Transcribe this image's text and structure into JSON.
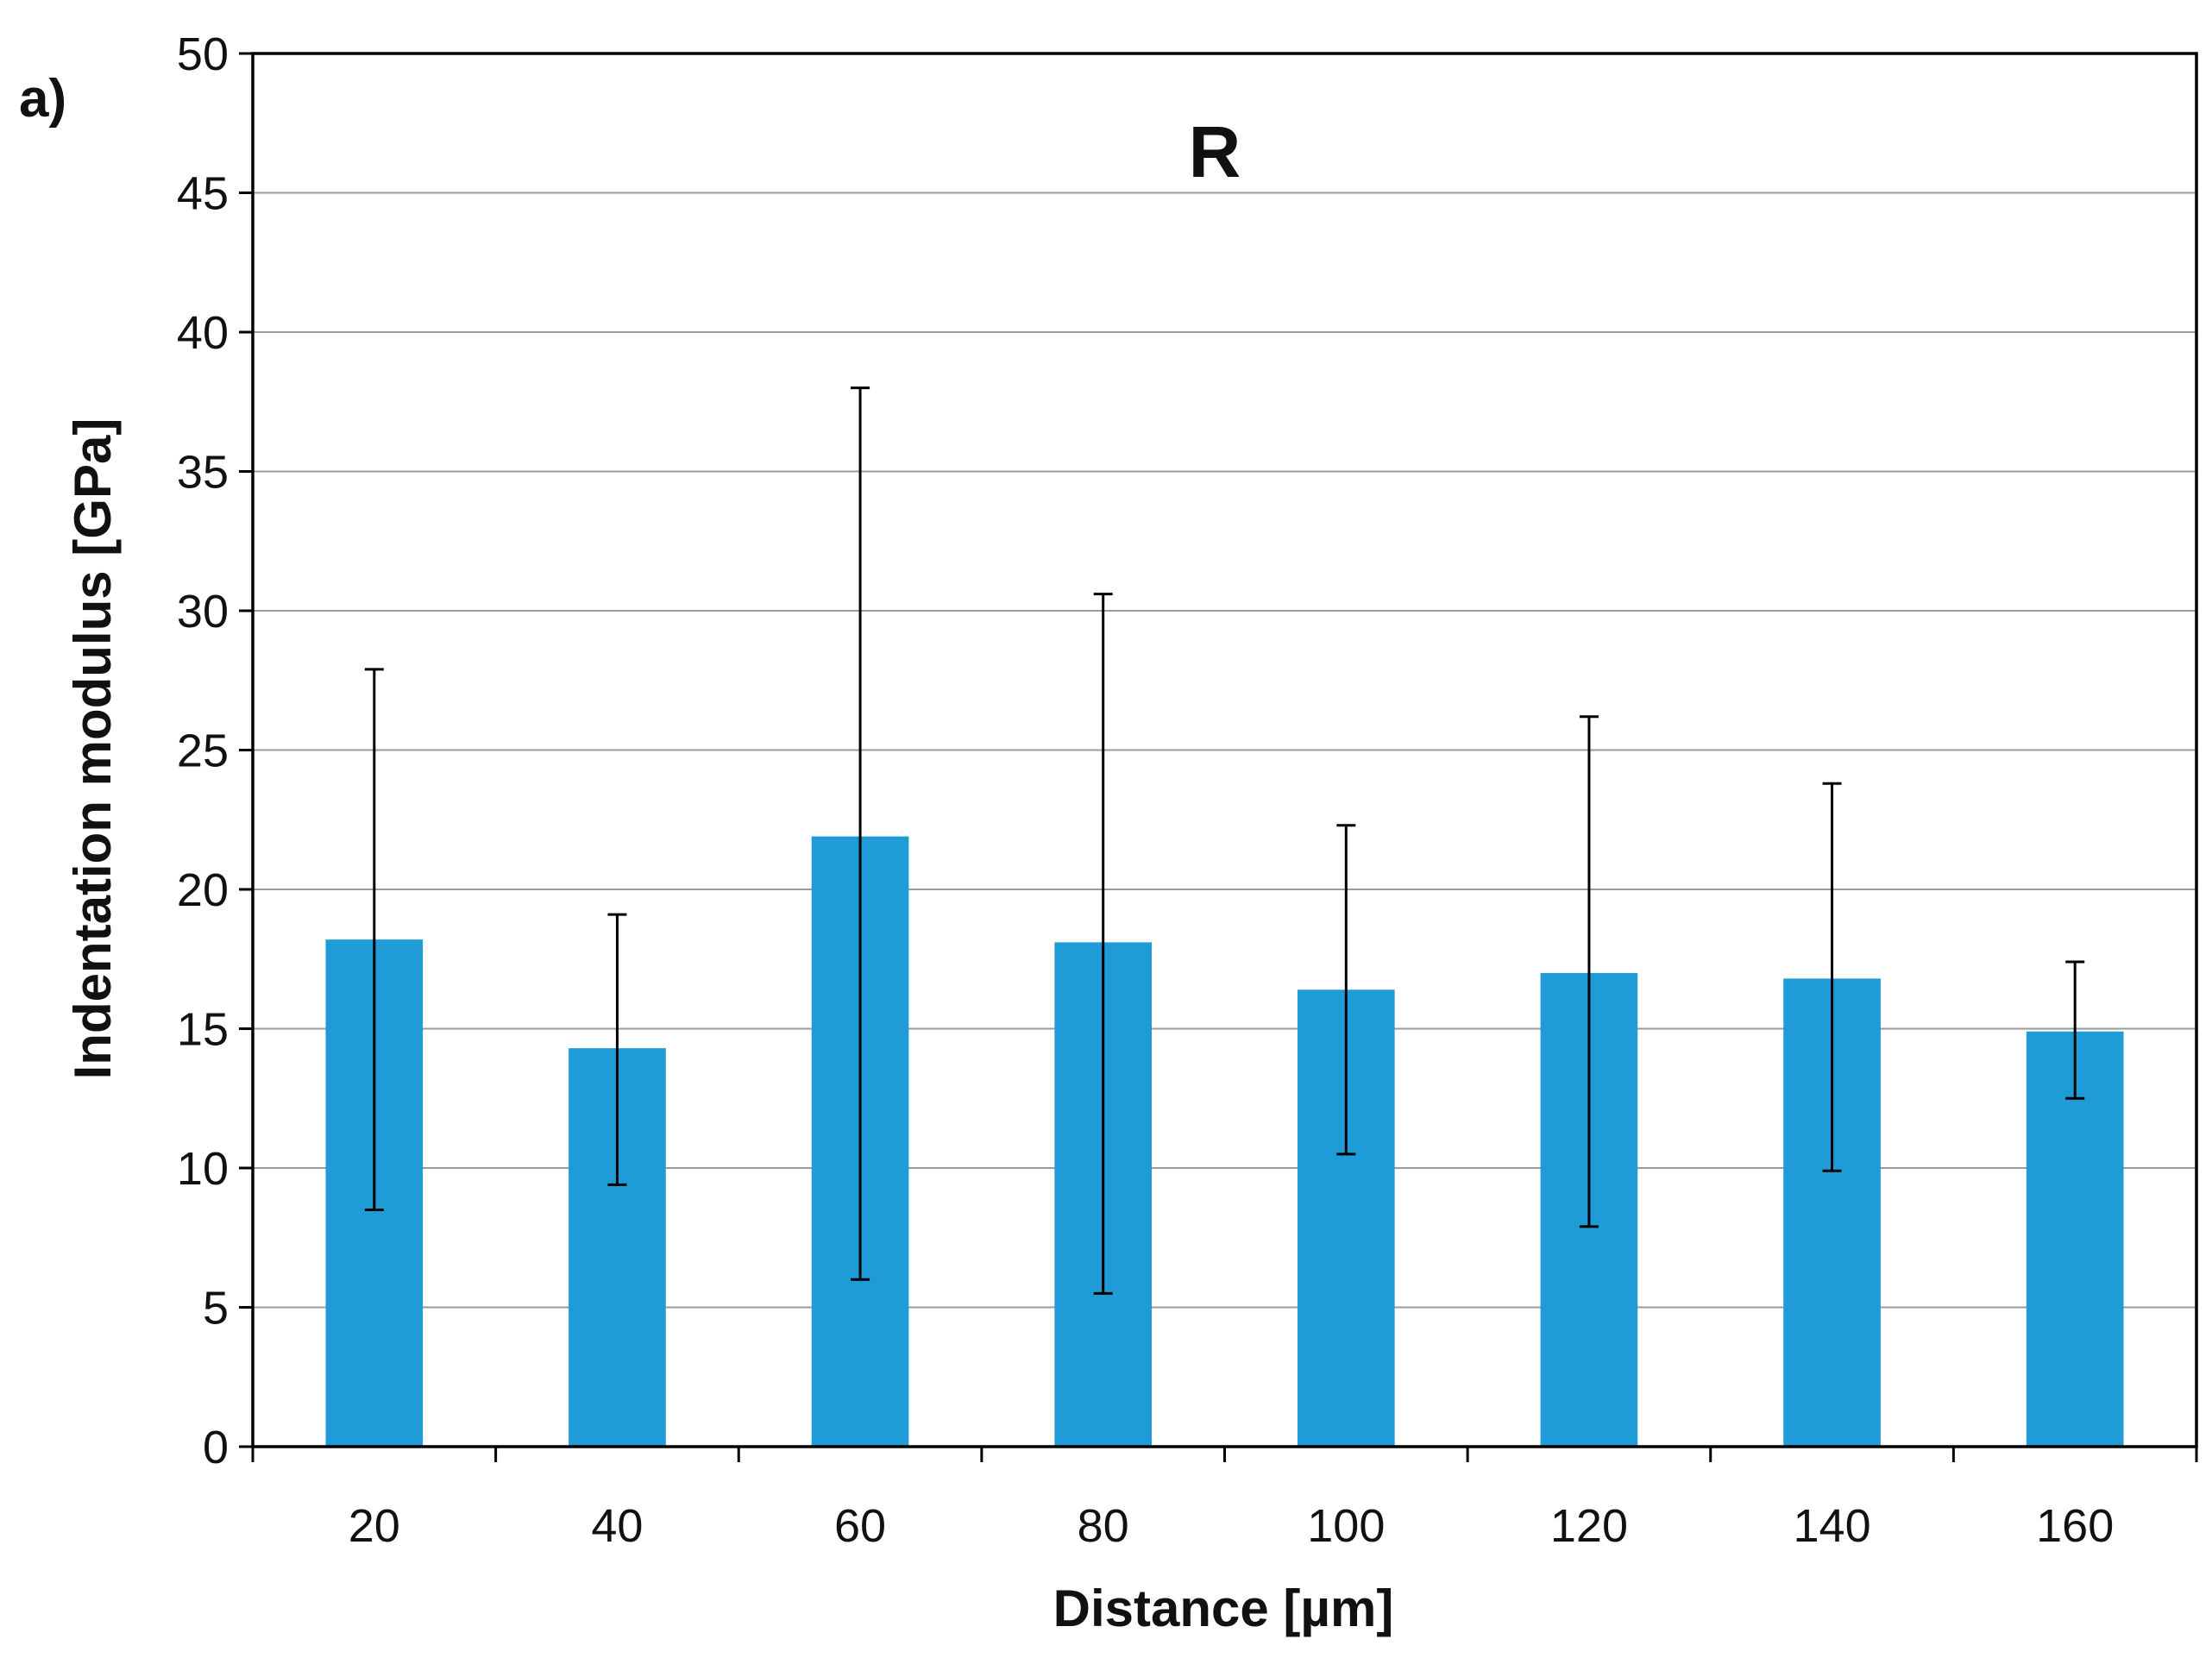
{
  "chart_data": {
    "type": "bar",
    "panel_label": "a)",
    "title": "R",
    "xlabel": "Distance [µm]",
    "ylabel": "Indentation modulus [GPa]",
    "categories": [
      "20",
      "40",
      "60",
      "80",
      "100",
      "120",
      "140",
      "160"
    ],
    "values": [
      18.2,
      14.3,
      21.9,
      18.1,
      16.4,
      17.0,
      16.8,
      14.9
    ],
    "error_lower": [
      8.5,
      9.4,
      6.0,
      5.5,
      10.5,
      7.9,
      9.9,
      12.5
    ],
    "error_upper": [
      27.9,
      19.1,
      38.0,
      30.6,
      22.3,
      26.2,
      23.8,
      17.4
    ],
    "ylim": [
      0,
      50
    ],
    "yticks": [
      0,
      5,
      10,
      15,
      20,
      25,
      30,
      35,
      40,
      45,
      50
    ],
    "grid": true,
    "bar_color": "#1f9bd7"
  }
}
